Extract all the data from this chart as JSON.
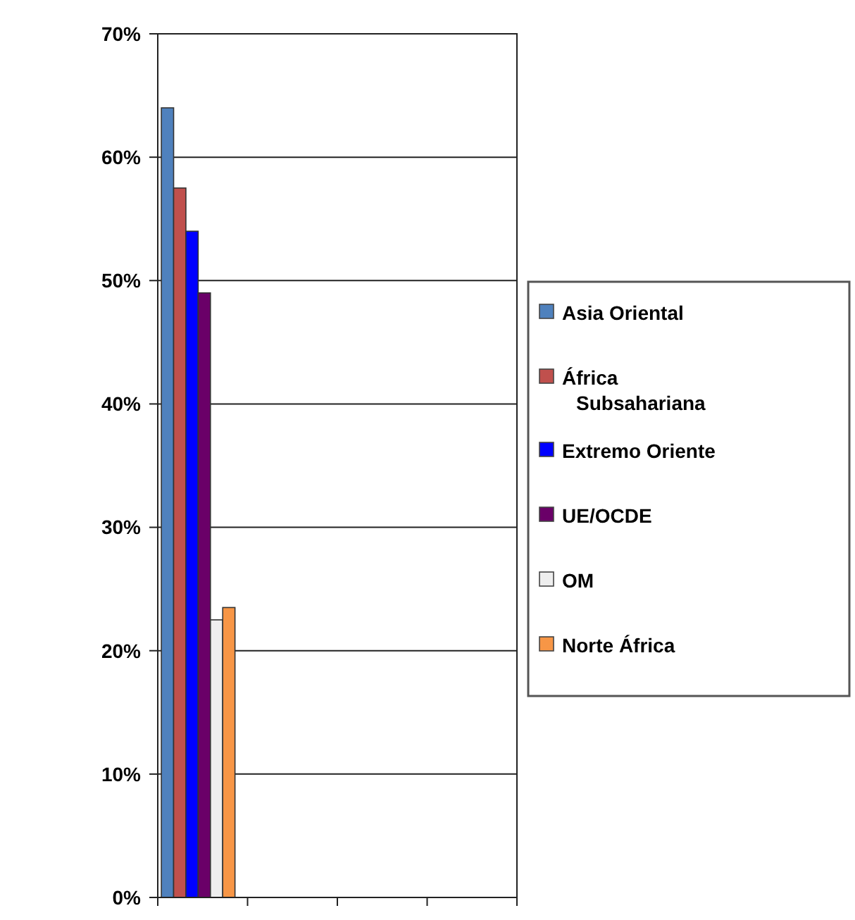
{
  "chart_data": {
    "type": "bar",
    "categories": [
      null,
      null,
      null,
      null
    ],
    "series": [
      {
        "name": "Asia Oriental",
        "color": "#4f81bd",
        "values": [
          64,
          null,
          null,
          null
        ]
      },
      {
        "name": "África Subsahariana",
        "color": "#c0504d",
        "values": [
          57.5,
          null,
          null,
          null
        ]
      },
      {
        "name": "Extremo Oriente",
        "color": "#0000ff",
        "values": [
          54,
          null,
          null,
          null
        ]
      },
      {
        "name": "UE/OCDE",
        "color": "#6a0068",
        "values": [
          49,
          null,
          null,
          null
        ]
      },
      {
        "name": "OM",
        "color": "#eeeeee",
        "values": [
          22.5,
          null,
          null,
          null
        ]
      },
      {
        "name": "Norte África",
        "color": "#f79646",
        "values": [
          23.5,
          null,
          null,
          null
        ]
      }
    ],
    "ylim": [
      0,
      70
    ],
    "yticks": [
      {
        "value": 0,
        "label": "0%"
      },
      {
        "value": 10,
        "label": "10%"
      },
      {
        "value": 20,
        "label": "20%"
      },
      {
        "value": 30,
        "label": "30%"
      },
      {
        "value": 40,
        "label": "40%"
      },
      {
        "value": 50,
        "label": "50%"
      },
      {
        "value": 60,
        "label": "60%"
      },
      {
        "value": 70,
        "label": "70%"
      }
    ],
    "grid": "y",
    "legend": "right"
  }
}
